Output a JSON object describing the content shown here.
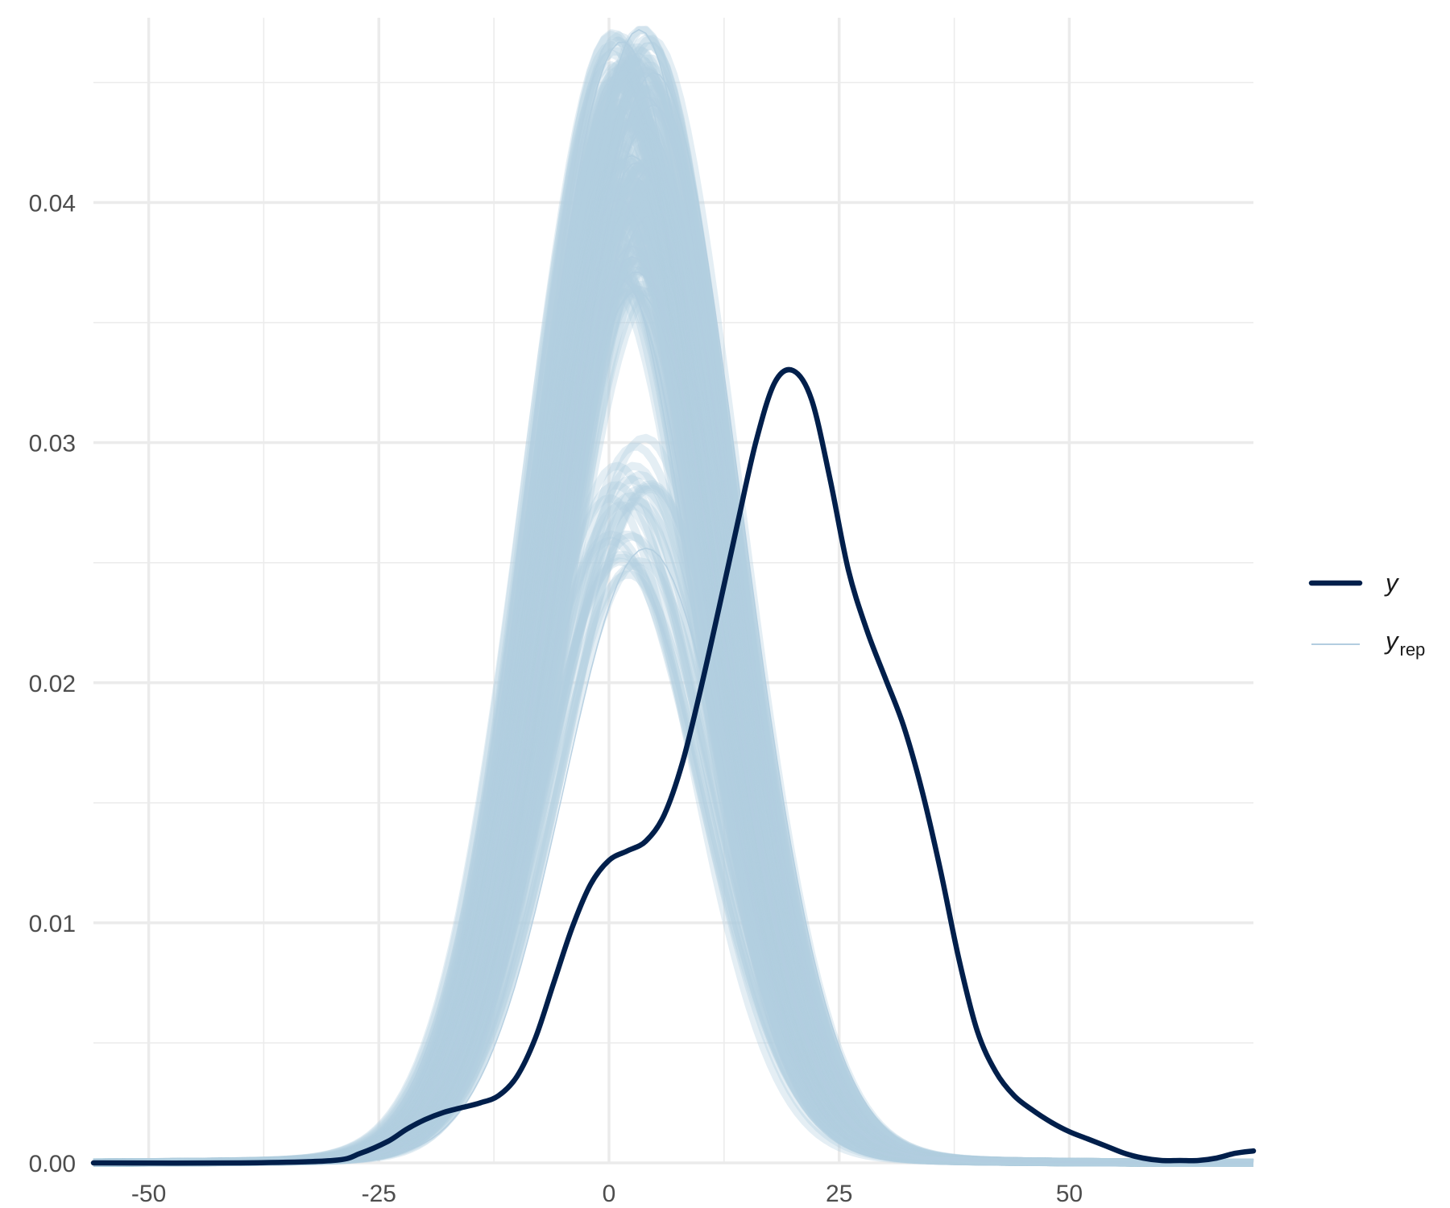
{
  "chart_data": {
    "type": "line",
    "title": "",
    "xlabel": "",
    "ylabel": "",
    "xlim": [
      -56,
      70
    ],
    "ylim": [
      0,
      0.0477
    ],
    "x_ticks": [
      -50,
      -25,
      0,
      25,
      50
    ],
    "x_tick_labels": [
      "-50",
      "-25",
      "0",
      "25",
      "50"
    ],
    "y_ticks": [
      0,
      0.01,
      0.02,
      0.03,
      0.04
    ],
    "y_tick_labels": [
      "0.00",
      "0.01",
      "0.02",
      "0.03",
      "0.04"
    ],
    "grid": true,
    "legend_position": "right",
    "colors": {
      "y": "#011f4b",
      "yrep": "#b3cde0",
      "grid": "#ebebeb",
      "tick_text": "#4d4d4d"
    },
    "series": [
      {
        "name": "y",
        "x": [
          -56,
          -40,
          -30,
          -27,
          -24,
          -22,
          -20,
          -18,
          -16,
          -14,
          -12,
          -10,
          -8,
          -6,
          -4,
          -2,
          0,
          2,
          4,
          6,
          8,
          10,
          12,
          14,
          16,
          18,
          20,
          22,
          24,
          26,
          28,
          30,
          32,
          34,
          36,
          38,
          40,
          42,
          44,
          46,
          48,
          50,
          52,
          54,
          56,
          58,
          60,
          62,
          64,
          66,
          68,
          70
        ],
        "y": [
          0,
          0,
          0.0001,
          0.0004,
          0.0009,
          0.0014,
          0.0018,
          0.0021,
          0.0023,
          0.0025,
          0.0028,
          0.0036,
          0.0052,
          0.0075,
          0.0098,
          0.0116,
          0.0126,
          0.013,
          0.0134,
          0.0145,
          0.0167,
          0.0198,
          0.0232,
          0.0267,
          0.0301,
          0.0325,
          0.033,
          0.0318,
          0.0285,
          0.0247,
          0.0222,
          0.0202,
          0.0182,
          0.0155,
          0.0122,
          0.0085,
          0.0055,
          0.0038,
          0.0028,
          0.0022,
          0.0017,
          0.0013,
          0.001,
          0.0007,
          0.0004,
          0.0002,
          0.0001,
          0.0001,
          0.0001,
          0.0002,
          0.0004,
          0.0005
        ]
      },
      {
        "name": "y_rep",
        "draws": 200,
        "density": "approximately normal",
        "mean_range": [
          0,
          5
        ],
        "sd_range": [
          8.8,
          9.6
        ],
        "peak_density_range": [
          0.024,
          0.047
        ]
      }
    ]
  },
  "legend": {
    "items": [
      {
        "key": "y",
        "label": "y",
        "sub": ""
      },
      {
        "key": "y_rep",
        "label": "y",
        "sub": "rep"
      }
    ]
  }
}
